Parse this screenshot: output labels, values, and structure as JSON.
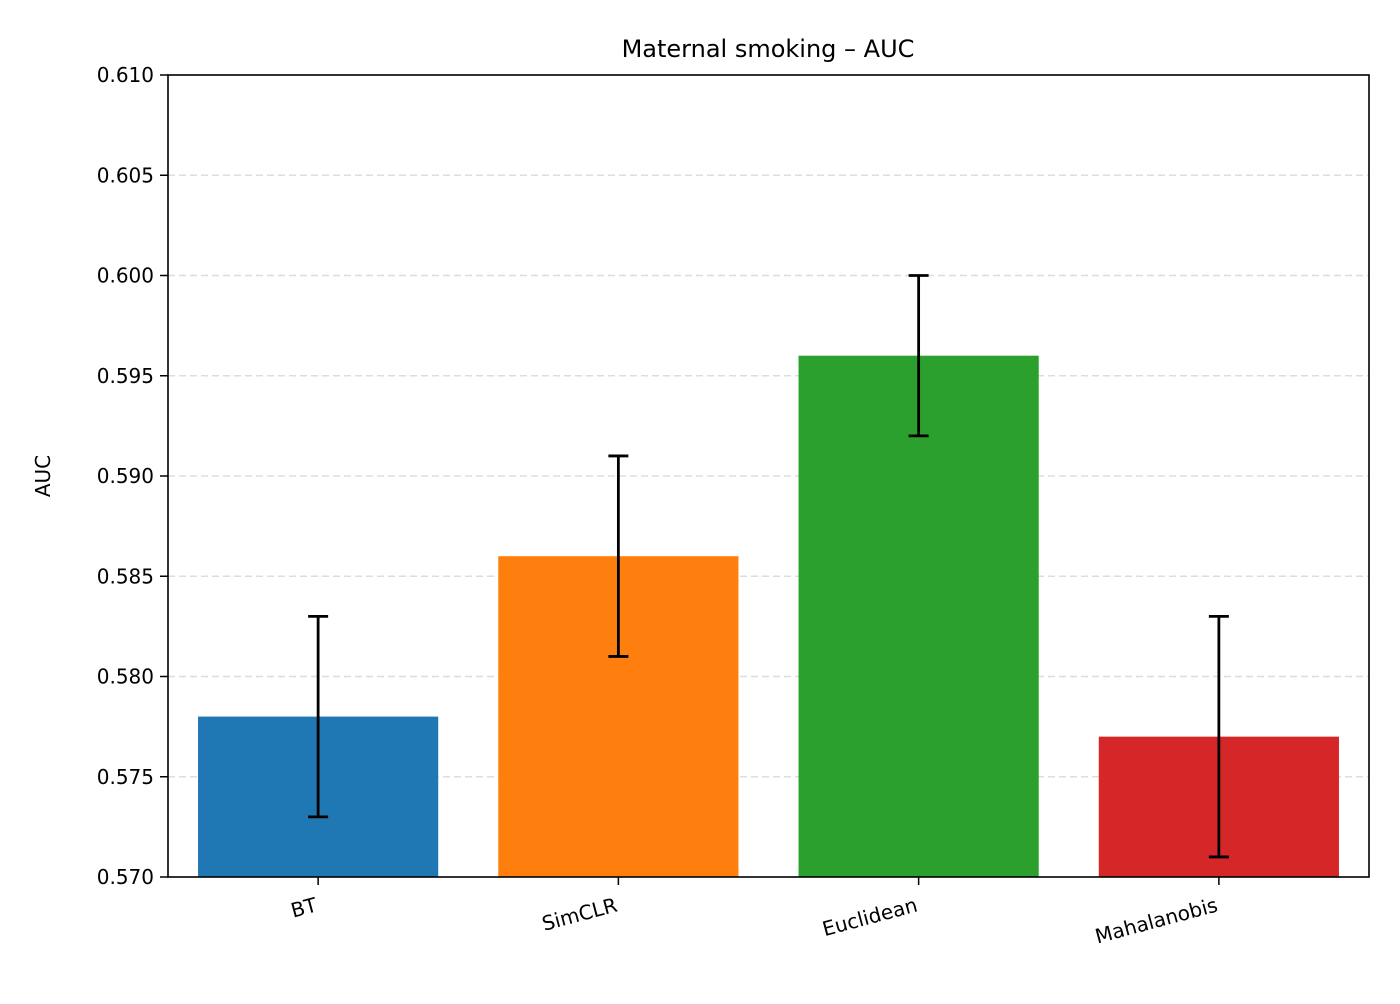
{
  "chart_data": {
    "type": "bar",
    "title": "Maternal smoking – AUC",
    "xlabel": "",
    "ylabel": "AUC",
    "categories": [
      "BT",
      "SimCLR",
      "Euclidean",
      "Mahalanobis"
    ],
    "values": [
      0.578,
      0.586,
      0.596,
      0.577
    ],
    "error_low": [
      0.573,
      0.581,
      0.592,
      0.571
    ],
    "error_high": [
      0.583,
      0.591,
      0.6,
      0.583
    ],
    "colors": [
      "#1f77b4",
      "#ff7f0e",
      "#2ca02c",
      "#d62728"
    ],
    "ylim": [
      0.57,
      0.61
    ],
    "yticks": [
      "0.570",
      "0.575",
      "0.580",
      "0.585",
      "0.590",
      "0.595",
      "0.600",
      "0.605",
      "0.610"
    ],
    "grid": "horizontal-dashed",
    "legend": "none"
  }
}
